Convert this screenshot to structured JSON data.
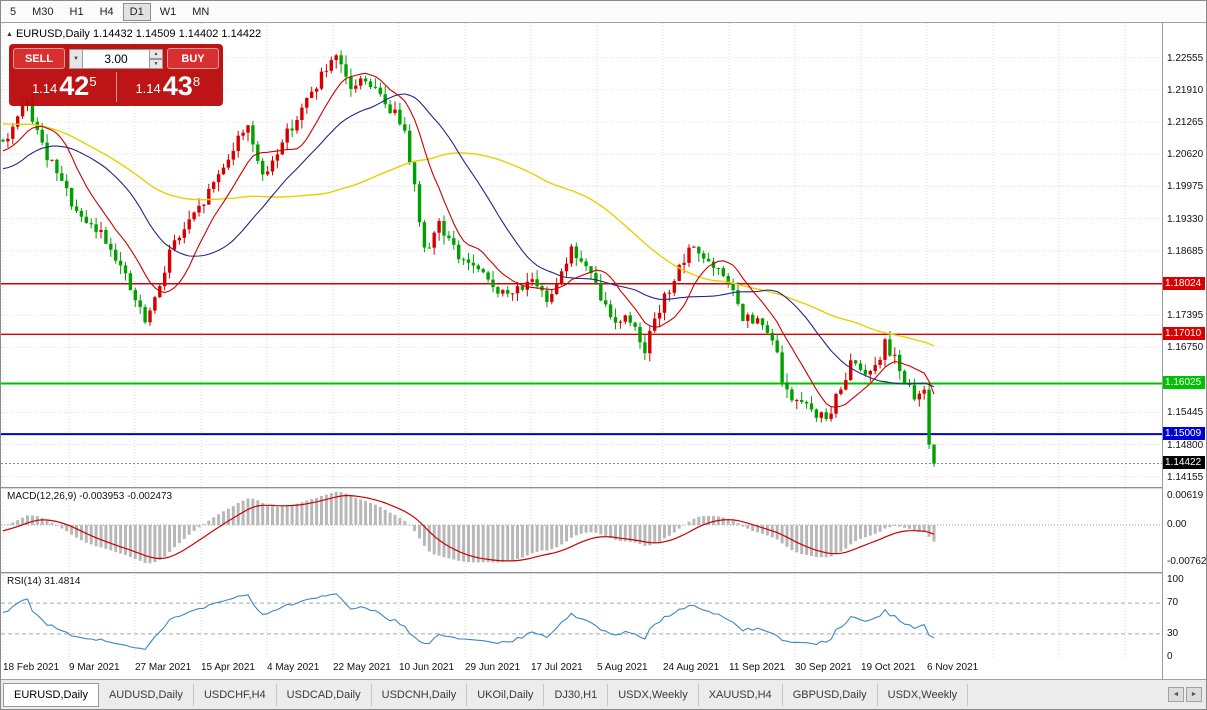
{
  "toolbar": {
    "timeframes": [
      {
        "label": "5",
        "active": false
      },
      {
        "label": "M30",
        "active": false
      },
      {
        "label": "H1",
        "active": false
      },
      {
        "label": "H4",
        "active": false
      },
      {
        "label": "D1",
        "active": true
      },
      {
        "label": "W1",
        "active": false
      },
      {
        "label": "MN",
        "active": false
      }
    ]
  },
  "chart": {
    "symbol_marker": "▲",
    "symbol_label": "EURUSD,Daily 1.14432 1.14509 1.14402 1.14422",
    "trade_panel": {
      "sell_label": "SELL",
      "buy_label": "BUY",
      "volume": "3.00",
      "drop_icon": "▼",
      "spin_up": "▲",
      "spin_down": "▼",
      "sell_price_main": "1.14",
      "sell_price_big": "42",
      "sell_price_sup": "5",
      "buy_price_main": "1.14",
      "buy_price_big": "43",
      "buy_price_sup": "8"
    },
    "y_axis_ticks": [
      "1.22555",
      "1.21910",
      "1.21265",
      "1.20620",
      "1.19975",
      "1.19330",
      "1.18685",
      "1.17395",
      "1.16750",
      "1.15445",
      "1.14800",
      "1.14155"
    ],
    "levels": [
      {
        "label": "1.18024",
        "price": 1.18024,
        "color": "#d80000",
        "width": 1.4
      },
      {
        "label": "1.17010",
        "price": 1.1701,
        "color": "#d80000",
        "width": 1.4
      },
      {
        "label": "1.16025",
        "price": 1.16025,
        "color": "#00c000",
        "width": 2
      },
      {
        "label": "1.15009",
        "price": 1.15009,
        "color": "#0000d8",
        "width": 2
      }
    ],
    "current_price": {
      "label": "1.14422",
      "price": 1.14422,
      "color": "#000000"
    },
    "dates": [
      "18 Feb 2021",
      "9 Mar 2021",
      "27 Mar 2021",
      "15 Apr 2021",
      "4 May 2021",
      "22 May 2021",
      "10 Jun 2021",
      "29 Jun 2021",
      "17 Jul 2021",
      "5 Aug 2021",
      "24 Aug 2021",
      "11 Sep 2021",
      "30 Sep 2021",
      "19 Oct 2021",
      "6 Nov 2021"
    ]
  },
  "macd": {
    "label": "MACD(12,26,9) -0.003953 -0.002473",
    "axis": [
      "0.00619",
      "0.00",
      "-0.00762"
    ]
  },
  "rsi": {
    "label": "RSI(14) 31.4814",
    "axis": [
      "100",
      "70",
      "30",
      "0"
    ]
  },
  "tab_scroll": {
    "left": "◄",
    "right": "►"
  },
  "tabs": [
    {
      "label": "EURUSD,Daily",
      "active": true
    },
    {
      "label": "AUDUSD,Daily",
      "active": false
    },
    {
      "label": "USDCHF,H4",
      "active": false
    },
    {
      "label": "USDCAD,Daily",
      "active": false
    },
    {
      "label": "USDCNH,Daily",
      "active": false
    },
    {
      "label": "UKOil,Daily",
      "active": false
    },
    {
      "label": "DJ30,H1",
      "active": false
    },
    {
      "label": "USDX,Weekly",
      "active": false
    },
    {
      "label": "XAUUSD,H4",
      "active": false
    },
    {
      "label": "GBPUSD,Daily",
      "active": false
    },
    {
      "label": "USDX,Weekly",
      "active": false
    }
  ],
  "chart_data": {
    "type": "candlestick",
    "symbol": "EURUSD",
    "timeframe": "Daily",
    "ohlc_current": {
      "open": 1.14432,
      "high": 1.14509,
      "low": 1.14402,
      "close": 1.14422
    },
    "price_range": [
      1.1395,
      1.2325
    ],
    "macd_values": [
      -0.003953,
      -0.002473
    ],
    "rsi_value": 31.4814,
    "key_levels": [
      1.18024,
      1.1701,
      1.16025,
      1.15009
    ],
    "prehistory_bars": 60,
    "total_bars": 251,
    "bar_spacing": 4.9,
    "ma_periods": {
      "fast": 10,
      "mid": 25,
      "slow": 60
    },
    "indicators": {
      "macd": [
        12,
        26,
        9
      ],
      "rsi": 14
    },
    "colors": {
      "bull": "#d60000",
      "bear": "#00a000",
      "ma_fast": "#cc0000",
      "ma_mid": "#252588",
      "ma_slow": "#e8d000",
      "macd_hist": "#b8b8b8",
      "macd_signal": "#cc0000",
      "rsi": "#3b87c8",
      "grid": "#dcdcdc"
    },
    "close_anchors": [
      [
        0,
        1.212
      ],
      [
        15,
        1.225
      ],
      [
        30,
        1.217
      ],
      [
        40,
        1.196
      ],
      [
        50,
        1.205
      ],
      [
        59,
        1.208
      ],
      [
        60,
        1.2085
      ],
      [
        63,
        1.213
      ],
      [
        65,
        1.2165
      ],
      [
        68,
        1.2075
      ],
      [
        73,
        1.1985
      ],
      [
        76,
        1.1925
      ],
      [
        80,
        1.1905
      ],
      [
        83,
        1.186
      ],
      [
        86,
        1.179
      ],
      [
        89,
        1.1725
      ],
      [
        91,
        1.1765
      ],
      [
        94,
        1.187
      ],
      [
        100,
        1.195
      ],
      [
        105,
        1.204
      ],
      [
        110,
        1.2125
      ],
      [
        113,
        1.201
      ],
      [
        117,
        1.209
      ],
      [
        121,
        1.215
      ],
      [
        125,
        1.222
      ],
      [
        128,
        1.225
      ],
      [
        131,
        1.2195
      ],
      [
        134,
        1.2215
      ],
      [
        137,
        1.2175
      ],
      [
        142,
        1.212
      ],
      [
        144,
        1.1995
      ],
      [
        146,
        1.1865
      ],
      [
        149,
        1.1925
      ],
      [
        153,
        1.1855
      ],
      [
        155,
        1.1845
      ],
      [
        158,
        1.1815
      ],
      [
        163,
        1.1775
      ],
      [
        167,
        1.181
      ],
      [
        171,
        1.177
      ],
      [
        176,
        1.187
      ],
      [
        179,
        1.1835
      ],
      [
        184,
        1.1735
      ],
      [
        188,
        1.173
      ],
      [
        191,
        1.1675
      ],
      [
        196,
        1.1795
      ],
      [
        201,
        1.188
      ],
      [
        205,
        1.183
      ],
      [
        208,
        1.181
      ],
      [
        211,
        1.173
      ],
      [
        214,
        1.1725
      ],
      [
        217,
        1.169
      ],
      [
        220,
        1.158
      ],
      [
        224,
        1.1555
      ],
      [
        228,
        1.153
      ],
      [
        231,
        1.159
      ],
      [
        233,
        1.165
      ],
      [
        237,
        1.1625
      ],
      [
        240,
        1.168
      ],
      [
        242,
        1.166
      ],
      [
        244,
        1.161
      ],
      [
        246,
        1.1565
      ],
      [
        248,
        1.159
      ],
      [
        249,
        1.148
      ],
      [
        250,
        1.1442
      ]
    ]
  }
}
